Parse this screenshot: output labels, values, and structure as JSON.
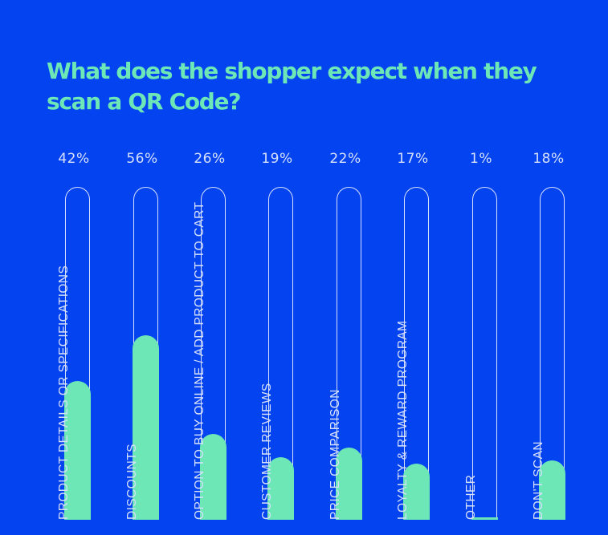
{
  "title": "What does the shopper expect when they scan a QR Code?",
  "colors": {
    "background": "#0343F0",
    "accent": "#6EE7B7",
    "text": "#D6E0FB"
  },
  "bars": [
    {
      "label": "PRODUCT DETAILS OR SPECIFICATIONS",
      "pct": "42%",
      "value": 42
    },
    {
      "label": "DISCOUNTS",
      "pct": "56%",
      "value": 56
    },
    {
      "label": "OPTION TO BUY ONLINE / ADD PRODUCT TO CART",
      "pct": "26%",
      "value": 26
    },
    {
      "label": "CUSTOMER REVIEWS",
      "pct": "19%",
      "value": 19
    },
    {
      "label": "PRICE COMPARISON",
      "pct": "22%",
      "value": 22
    },
    {
      "label": "LOYALTY & REWARD PROGRAM",
      "pct": "17%",
      "value": 17
    },
    {
      "label": "OTHER",
      "pct": "1%",
      "value": 1
    },
    {
      "label": "DON'T SCAN",
      "pct": "18%",
      "value": 18
    }
  ],
  "chart_data": {
    "type": "bar",
    "title": "What does the shopper expect when they scan a QR Code?",
    "categories": [
      "PRODUCT DETAILS OR SPECIFICATIONS",
      "DISCOUNTS",
      "OPTION TO BUY ONLINE / ADD PRODUCT TO CART",
      "CUSTOMER REVIEWS",
      "PRICE COMPARISON",
      "LOYALTY & REWARD PROGRAM",
      "OTHER",
      "DON'T SCAN"
    ],
    "values": [
      42,
      56,
      26,
      19,
      22,
      17,
      1,
      18
    ],
    "value_labels": [
      "42%",
      "56%",
      "26%",
      "19%",
      "22%",
      "17%",
      "1%",
      "18%"
    ],
    "xlabel": "",
    "ylabel": "",
    "ylim": [
      0,
      100
    ],
    "orientation": "vertical",
    "grid": false,
    "legend": "none",
    "bar_color": "#6EE7B7"
  }
}
